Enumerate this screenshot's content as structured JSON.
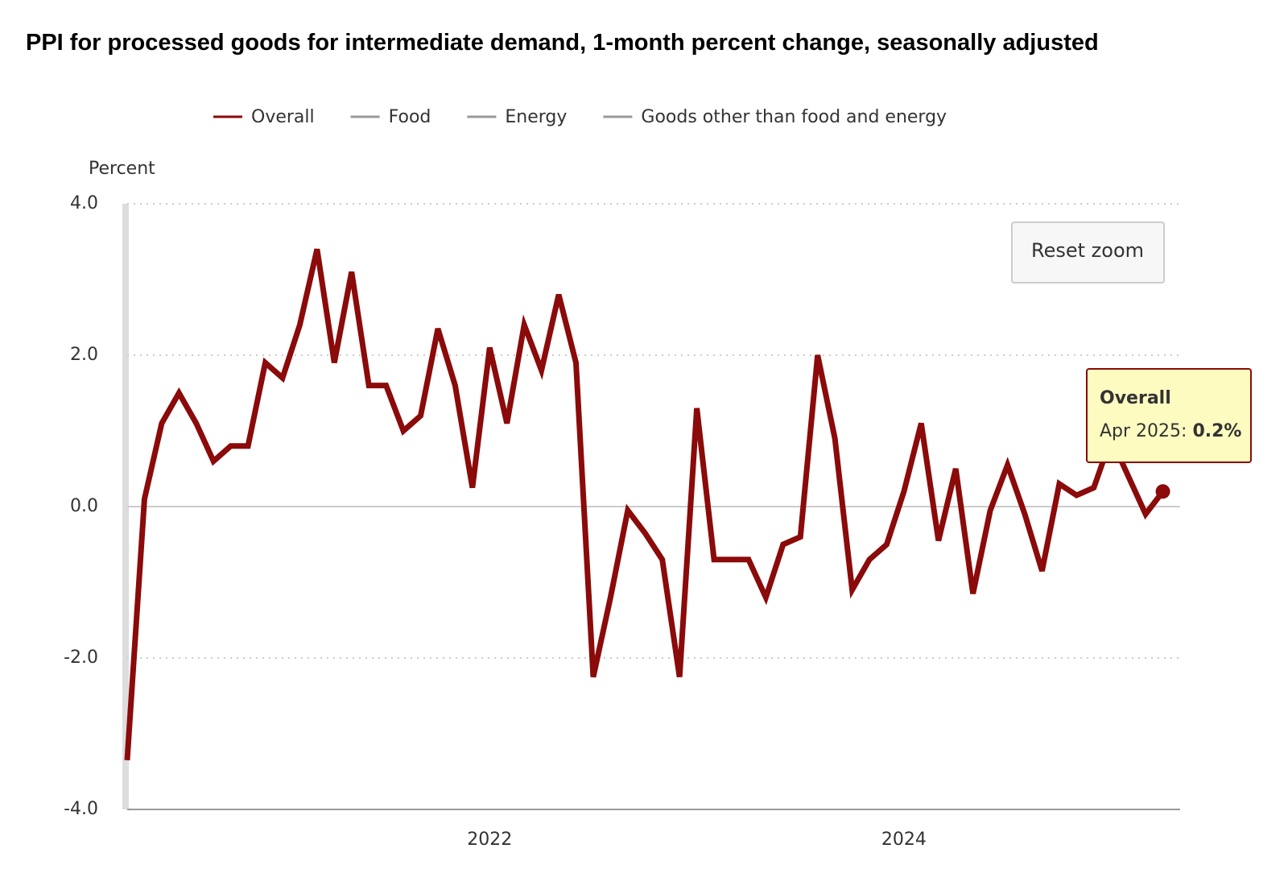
{
  "chart_data": {
    "type": "line",
    "title": "PPI for processed goods for intermediate demand, 1-month percent change, seasonally adjusted",
    "y_axis_label": "Percent",
    "x": [
      "2020-04",
      "2020-05",
      "2020-06",
      "2020-07",
      "2020-08",
      "2020-09",
      "2020-10",
      "2020-11",
      "2020-12",
      "2021-01",
      "2021-02",
      "2021-03",
      "2021-04",
      "2021-05",
      "2021-06",
      "2021-07",
      "2021-08",
      "2021-09",
      "2021-10",
      "2021-11",
      "2021-12",
      "2022-01",
      "2022-02",
      "2022-03",
      "2022-04",
      "2022-05",
      "2022-06",
      "2022-07",
      "2022-08",
      "2022-09",
      "2022-10",
      "2022-11",
      "2022-12",
      "2023-01",
      "2023-02",
      "2023-03",
      "2023-04",
      "2023-05",
      "2023-06",
      "2023-07",
      "2023-08",
      "2023-09",
      "2023-10",
      "2023-11",
      "2023-12",
      "2024-01",
      "2024-02",
      "2024-03",
      "2024-04",
      "2024-05",
      "2024-06",
      "2024-07",
      "2024-08",
      "2024-09",
      "2024-10",
      "2024-11",
      "2024-12",
      "2025-01",
      "2025-02",
      "2025-03",
      "2025-04"
    ],
    "series": [
      {
        "name": "Overall",
        "color": "#8b0a0a",
        "visible": true,
        "values": [
          -3.35,
          0.1,
          1.1,
          1.5,
          1.1,
          0.6,
          0.8,
          0.8,
          1.9,
          1.7,
          2.4,
          3.4,
          1.9,
          3.1,
          1.6,
          1.6,
          1.0,
          1.2,
          2.35,
          1.6,
          0.25,
          2.1,
          1.1,
          2.4,
          1.8,
          2.8,
          1.9,
          -2.25,
          -1.2,
          -0.05,
          -0.35,
          -0.7,
          -2.25,
          1.3,
          -0.7,
          -0.7,
          -0.7,
          -1.2,
          -0.5,
          -0.4,
          2.0,
          0.9,
          -1.1,
          -0.7,
          -0.5,
          0.2,
          1.1,
          -0.45,
          0.5,
          -1.15,
          -0.05,
          0.55,
          -0.1,
          -0.85,
          0.3,
          0.15,
          0.25,
          0.9,
          0.4,
          -0.1,
          0.2
        ]
      },
      {
        "name": "Food",
        "color": "#999999",
        "visible": false
      },
      {
        "name": "Energy",
        "color": "#999999",
        "visible": false
      },
      {
        "name": "Goods other than food and energy",
        "color": "#999999",
        "visible": false
      }
    ],
    "xlim": [
      "2020-04",
      "2025-05"
    ],
    "xticks": [
      {
        "value": "2022-01",
        "label": "2022"
      },
      {
        "value": "2024-01",
        "label": "2024"
      }
    ],
    "ylim": [
      -4,
      4
    ],
    "yticks": [
      {
        "value": -4,
        "label": "-4.0"
      },
      {
        "value": -2,
        "label": "-2.0"
      },
      {
        "value": 0,
        "label": "0.0"
      },
      {
        "value": 2,
        "label": "2.0"
      },
      {
        "value": 4,
        "label": "4.0"
      }
    ],
    "grid": true,
    "legend": "top",
    "reset_zoom_label": "Reset zoom",
    "tooltip": {
      "series": "Overall",
      "date": "Apr 2025",
      "value": "0.2%"
    }
  }
}
